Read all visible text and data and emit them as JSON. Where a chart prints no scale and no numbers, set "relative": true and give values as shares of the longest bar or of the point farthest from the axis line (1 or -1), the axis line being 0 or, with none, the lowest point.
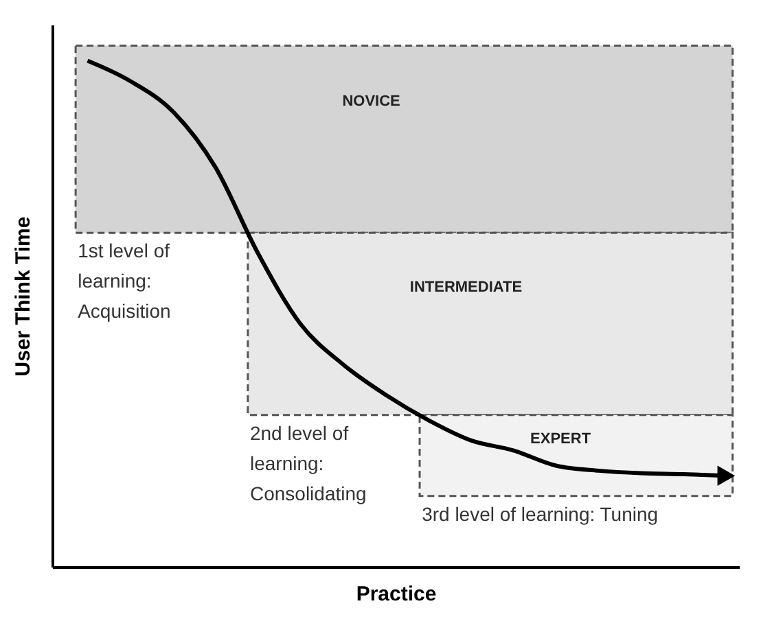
{
  "chart_data": {
    "type": "line",
    "relative": true,
    "xlabel": "Practice",
    "ylabel": "User Think Time",
    "categories": [
      null,
      null,
      null,
      null,
      null,
      null,
      null,
      null,
      null,
      null,
      null,
      null,
      null,
      null,
      null,
      null
    ],
    "series": [
      {
        "color": "#000000",
        "values": [
          1.0,
          0.96,
          0.9,
          0.79,
          0.62,
          0.48,
          0.4,
          0.34,
          0.29,
          0.25,
          0.23,
          0.2,
          0.19,
          0.185,
          0.183,
          0.18
        ]
      }
    ],
    "bands": [
      {
        "axis": "y",
        "from": 0.66,
        "to": 1.03,
        "label": "NOVICE",
        "color": "#d4d4d4"
      },
      {
        "axis": "y",
        "from": 0.3,
        "to": 0.66,
        "label": "INTERMEDIATE",
        "color": "#e8e8e8"
      },
      {
        "axis": "y",
        "from": 0.14,
        "to": 0.3,
        "label": "EXPERT",
        "color": "#f2f2f2"
      }
    ],
    "annotations": [
      "1st level of\nlearning:\nAcquisition",
      "2nd level of\nlearning:\nConsolidating",
      "3rd level of learning: Tuning"
    ],
    "line_style": "solid",
    "marker": "none",
    "grid": false
  }
}
